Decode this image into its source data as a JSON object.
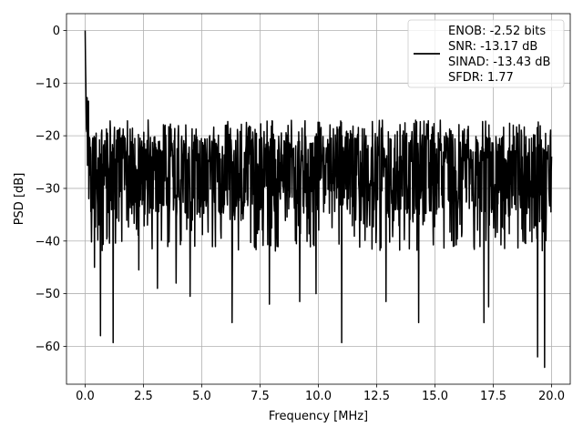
{
  "chart_data": {
    "type": "line",
    "xlabel": "Frequency [MHz]",
    "ylabel": "PSD [dB]",
    "xlim": [
      -0.8,
      20.8
    ],
    "ylim": [
      -67.2,
      3.2
    ],
    "xticks": [
      0.0,
      2.5,
      5.0,
      7.5,
      10.0,
      12.5,
      15.0,
      17.5,
      20.0
    ],
    "xtick_labels": [
      "0.0",
      "2.5",
      "5.0",
      "7.5",
      "10.0",
      "12.5",
      "15.0",
      "17.5",
      "20.0"
    ],
    "yticks": [
      0,
      -10,
      -20,
      -30,
      -40,
      -50,
      -60
    ],
    "ytick_labels": [
      "0",
      "−10",
      "−20",
      "−30",
      "−40",
      "−50",
      "−60"
    ],
    "grid": true,
    "legend_position": "upper-right",
    "series": [
      {
        "color": "#000000",
        "x_range": [
          0.0,
          20.0
        ],
        "typical_range": [
          -35,
          -17
        ],
        "initial_peak": {
          "x": 0.0,
          "y": 0.0
        },
        "dips": [
          {
            "x": 0.4,
            "y": -45
          },
          {
            "x": 0.65,
            "y": -58
          },
          {
            "x": 1.2,
            "y": -59.3
          },
          {
            "x": 2.3,
            "y": -45.5
          },
          {
            "x": 3.1,
            "y": -49
          },
          {
            "x": 3.9,
            "y": -48
          },
          {
            "x": 4.5,
            "y": -50.5
          },
          {
            "x": 6.3,
            "y": -55.5
          },
          {
            "x": 7.9,
            "y": -52
          },
          {
            "x": 9.2,
            "y": -51.5
          },
          {
            "x": 9.9,
            "y": -50
          },
          {
            "x": 11.0,
            "y": -59.3
          },
          {
            "x": 12.9,
            "y": -51.5
          },
          {
            "x": 14.3,
            "y": -55.5
          },
          {
            "x": 17.1,
            "y": -55.5
          },
          {
            "x": 17.3,
            "y": -52.5
          },
          {
            "x": 19.4,
            "y": -62
          },
          {
            "x": 19.7,
            "y": -64
          }
        ]
      }
    ],
    "legend": {
      "lines": [
        "ENOB: -2.52 bits",
        "SNR: -13.17 dB",
        "SINAD: -13.43 dB",
        "SFDR: 1.77"
      ]
    }
  },
  "colors": {
    "line": "#000000",
    "grid": "#b0b0b0",
    "axes": "#000000",
    "background": "#ffffff"
  }
}
